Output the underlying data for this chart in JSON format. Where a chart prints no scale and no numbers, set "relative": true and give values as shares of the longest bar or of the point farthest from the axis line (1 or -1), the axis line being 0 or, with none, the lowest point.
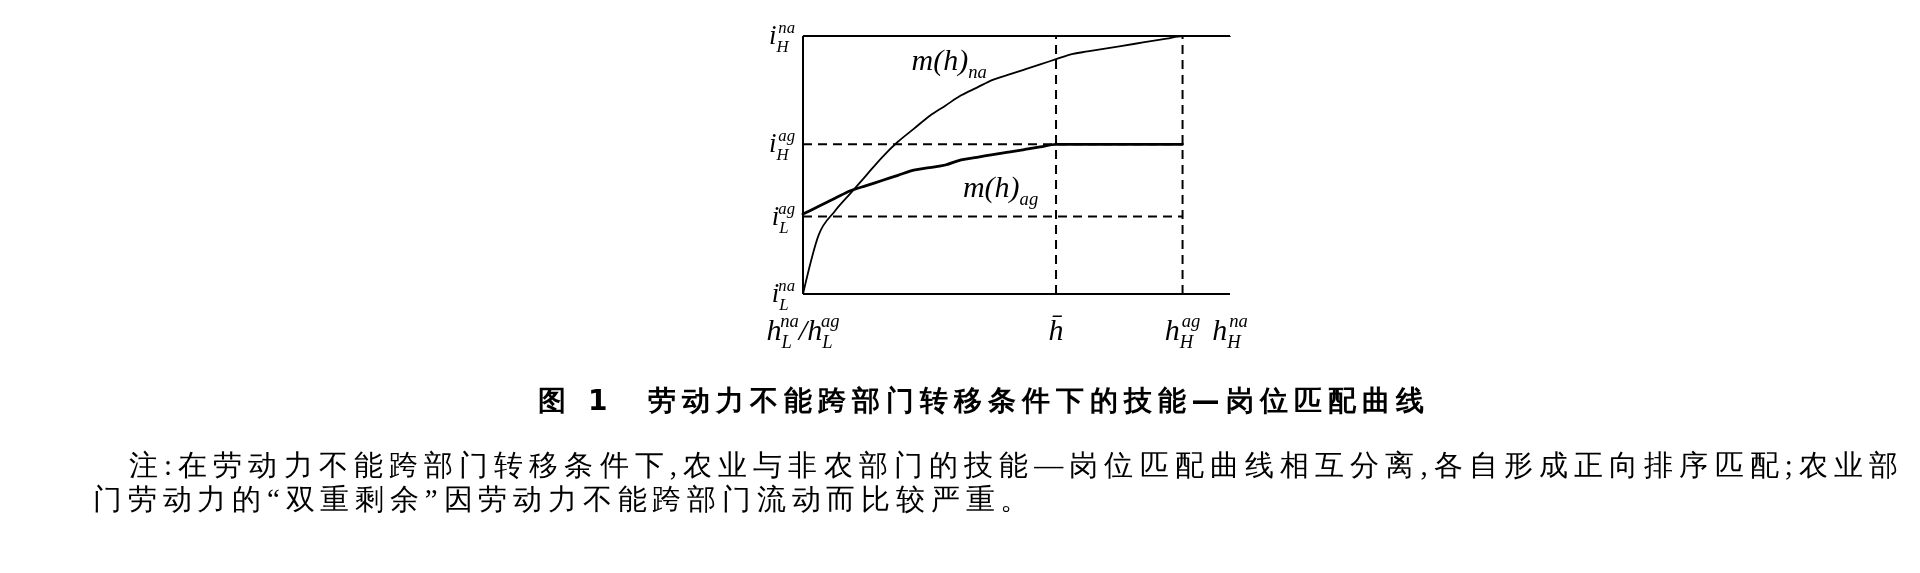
{
  "chart_data": {
    "type": "line",
    "title": "图 1　劳动力不能跨部门转移条件下的技能—岗位匹配曲线",
    "annotations": [
      "注:在劳动力不能跨部门转移条件下,农业与非农部门的技能—岗位匹配曲线相互分离,各自形成正向排序匹配;农业部门劳动力的“双重剩余”因劳动力不能跨部门流动而比较严重。",
      {
        "text": "i$_{L}$$^{na}$",
        "x": "h$_{L}$$^{na}$/h$_{L}$$^{ag}$",
        "y": 0
      }
    ],
    "relative": true,
    "categories": [
      "h$_{L}$$^{na}$/h$_{L}$$^{ag}$",
      null,
      null,
      null,
      null,
      null,
      null,
      null,
      null,
      null,
      null,
      null,
      null,
      null,
      null,
      null,
      "h̄",
      null,
      null,
      null,
      null,
      null,
      null,
      null,
      "h$_{H}$$^{ag}$",
      null,
      null,
      "h$_{H}$$^{na}$"
    ],
    "series": [
      {
        "name": "m(h)$_{na}$",
        "color": "#000000",
        "values": [
          0,
          0.23,
          0.32,
          0.39,
          0.46,
          0.53,
          0.59,
          0.64,
          0.69,
          0.73,
          0.77,
          0.8,
          0.83,
          0.85,
          0.87,
          0.89,
          0.91,
          0.93,
          0.94,
          0.95,
          0.96,
          0.97,
          0.98,
          0.99,
          1,
          1,
          1,
          1
        ]
      },
      {
        "name": "m(h)$_{ag}$",
        "color": "#000000",
        "values": [
          0.31,
          0.34,
          0.37,
          0.4,
          0.42,
          0.44,
          0.46,
          0.48,
          0.49,
          0.5,
          0.52,
          0.53,
          0.54,
          0.55,
          0.56,
          0.57,
          0.58,
          0.58,
          0.58,
          0.58,
          0.58,
          0.58,
          0.58,
          0.58,
          0.58,
          null,
          null,
          null
        ]
      }
    ],
    "ref_lines": [
      {
        "axis": "x",
        "value": "h̄",
        "line_style": "dashed"
      },
      {
        "axis": "x",
        "value": "h$_{H}$$^{ag}$",
        "line_style": "dashed"
      },
      {
        "axis": "y",
        "value": 1,
        "label": "i$_{H}$$^{na}$",
        "line_style": "solid"
      },
      {
        "axis": "y",
        "value": 0.58,
        "label": "i$_{H}$$^{ag}$",
        "line_style": "dashed"
      },
      {
        "axis": "y",
        "value": 0.3,
        "label": "i$_{L}$$^{ag}$",
        "line_style": "dashed"
      }
    ],
    "marker": "none"
  }
}
